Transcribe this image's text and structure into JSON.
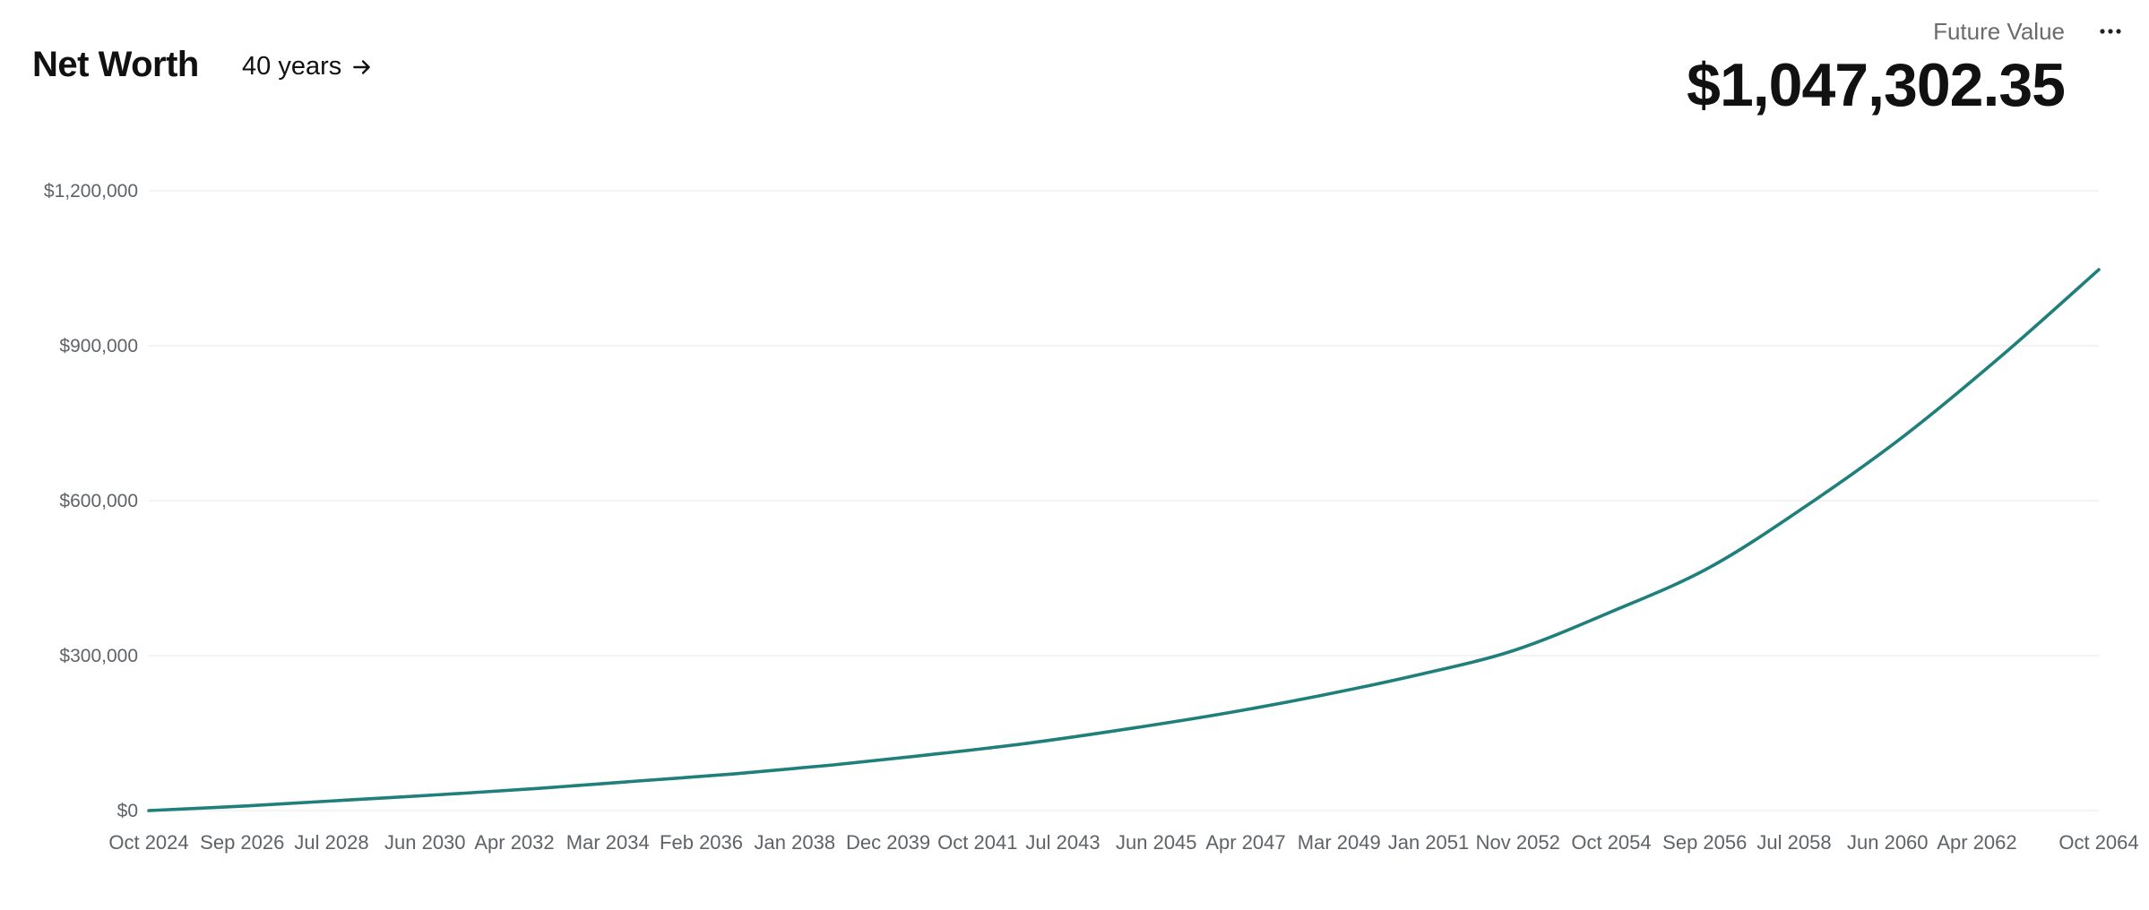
{
  "header": {
    "title": "Net Worth",
    "range_label": "40 years",
    "future_value_label": "Future Value",
    "future_value": "$1,047,302.35",
    "icons": {
      "range": "arrow-right-icon",
      "more": "more-horizontal-icon"
    }
  },
  "colors": {
    "line": "#1f7f7b",
    "grid": "#efefef",
    "axis_text": "#5f6368"
  },
  "chart_data": {
    "type": "line",
    "title": "",
    "xlabel": "",
    "ylabel": "",
    "x_range": [
      "Oct 2024",
      "Oct 2064"
    ],
    "ylim": [
      0,
      1200000
    ],
    "grid": true,
    "legend": "none",
    "y_ticks": [
      {
        "value": 0,
        "label": "$0"
      },
      {
        "value": 300000,
        "label": "$300,000"
      },
      {
        "value": 600000,
        "label": "$600,000"
      },
      {
        "value": 900000,
        "label": "$900,000"
      },
      {
        "value": 1200000,
        "label": "$1,200,000"
      }
    ],
    "x_ticks": [
      "Oct 2024",
      "Sep 2026",
      "Jul 2028",
      "Jun 2030",
      "Apr 2032",
      "Mar 2034",
      "Feb 2036",
      "Jan 2038",
      "Dec 2039",
      "Oct 2041",
      "Jul 2043",
      "Jun 2045",
      "Apr 2047",
      "Mar 2049",
      "Jan 2051",
      "Nov 2052",
      "Oct 2054",
      "Sep 2056",
      "Jul 2058",
      "Jun 2060",
      "Apr 2062",
      "Oct 2064"
    ],
    "series": [
      {
        "x": [
          "Oct 2024",
          "Oct 2026",
          "Oct 2028",
          "Oct 2030",
          "Oct 2032",
          "Oct 2034",
          "Oct 2036",
          "Oct 2038",
          "Oct 2040",
          "Oct 2042",
          "Oct 2044",
          "Oct 2046",
          "Oct 2048",
          "Oct 2050",
          "Oct 2052",
          "Oct 2054",
          "Oct 2056",
          "Oct 2058",
          "Oct 2060",
          "Oct 2062",
          "Oct 2064"
        ],
        "values": [
          0,
          9000,
          20000,
          31000,
          43000,
          57000,
          71000,
          88000,
          108000,
          130000,
          157000,
          187000,
          222000,
          262000,
          310000,
          385000,
          470000,
          590000,
          725000,
          880000,
          1047302.35
        ]
      }
    ]
  }
}
